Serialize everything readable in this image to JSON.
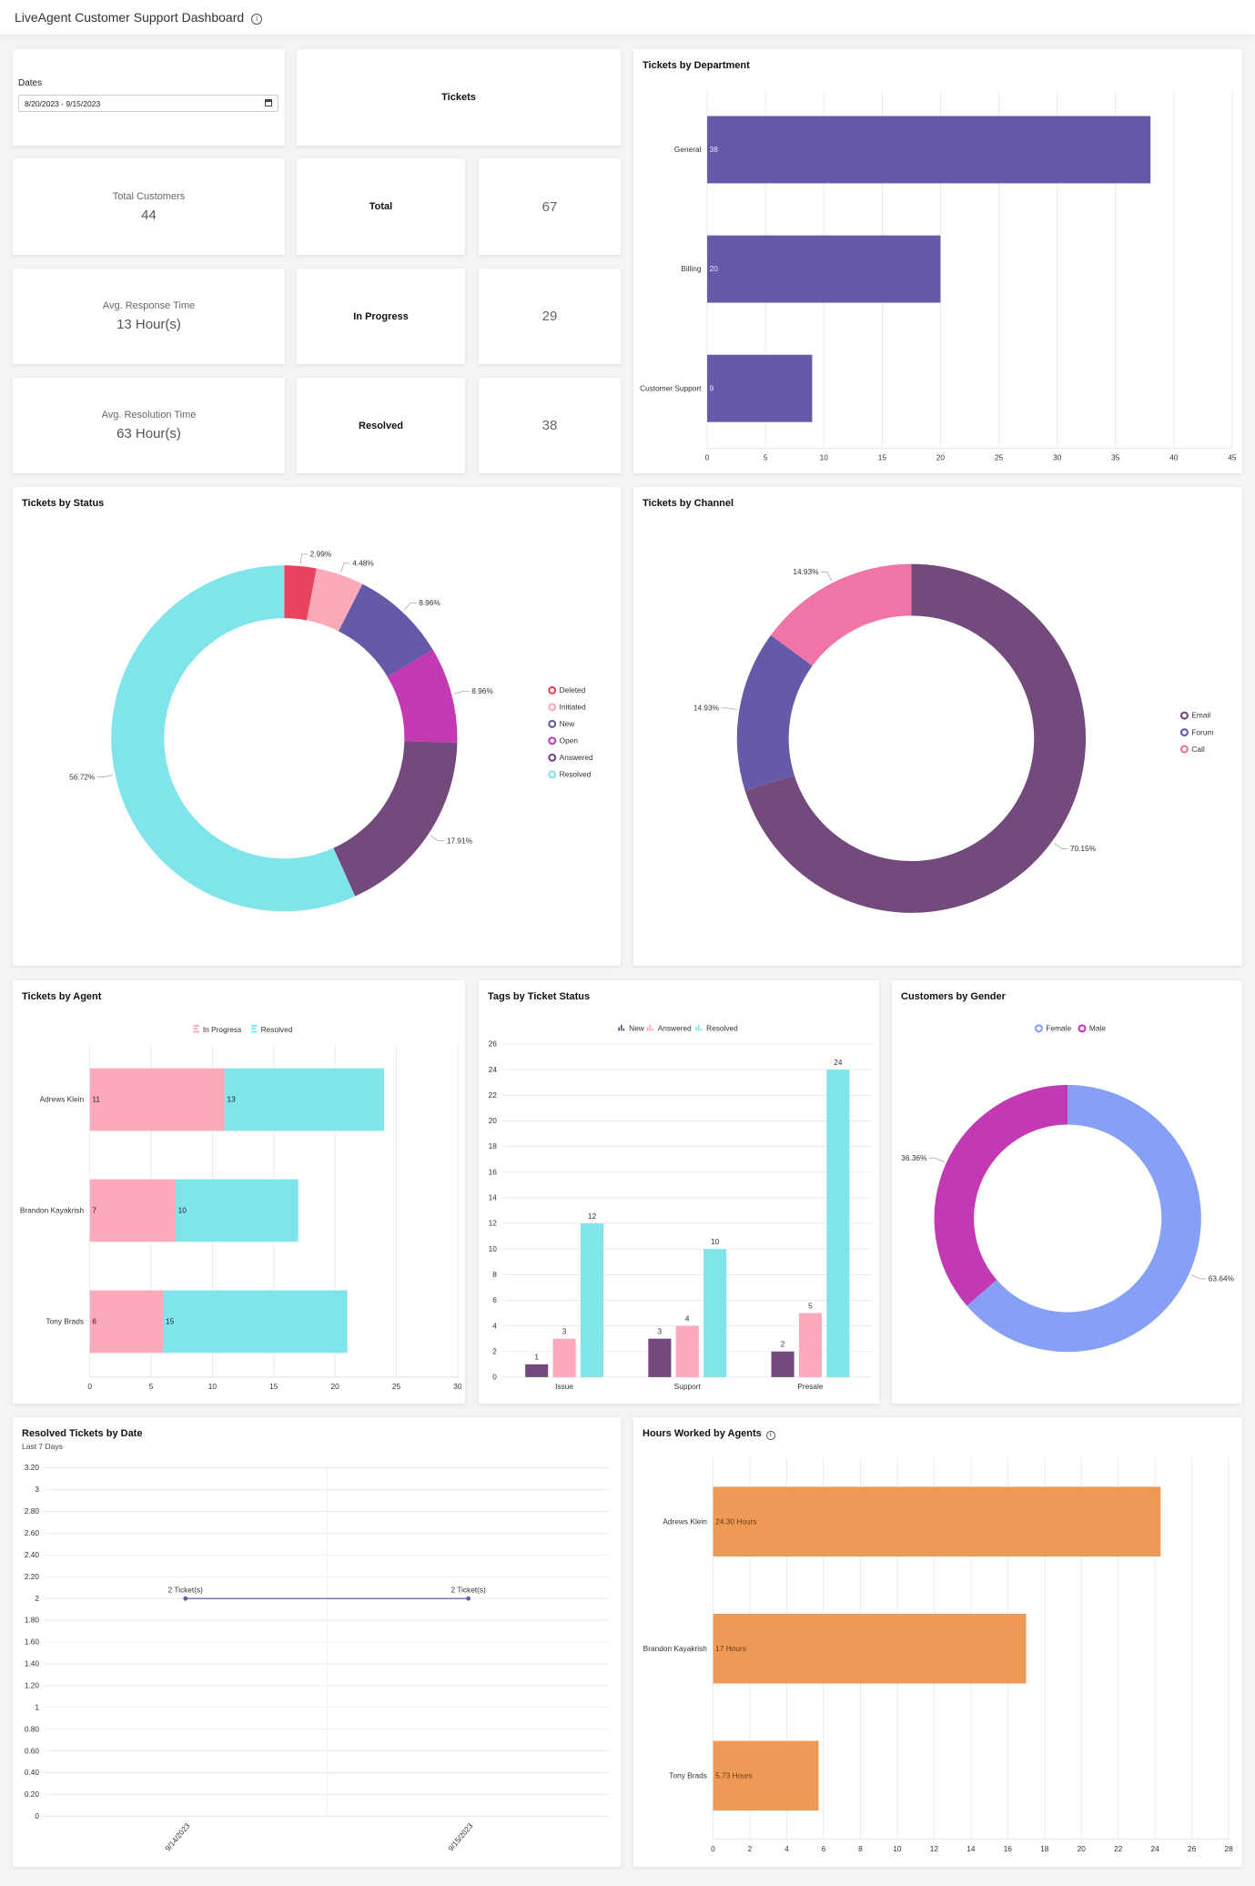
{
  "header": {
    "title": "LiveAgent Customer Support Dashboard",
    "info_icon": "info-icon"
  },
  "dates": {
    "label": "Dates",
    "value": "8/20/2023 - 9/15/2023",
    "icon": "calendar-icon"
  },
  "tickets_header": "Tickets",
  "stats": {
    "total_customers": {
      "label": "Total Customers",
      "value": "44"
    },
    "avg_response": {
      "label": "Avg. Response Time",
      "value": "13 Hour(s)"
    },
    "avg_resolution": {
      "label": "Avg. Resolution Time",
      "value": "63 Hour(s)"
    }
  },
  "tickets": {
    "total": {
      "label": "Total",
      "value": "67"
    },
    "in_progress": {
      "label": "In Progress",
      "value": "29"
    },
    "resolved": {
      "label": "Resolved",
      "value": "38"
    }
  },
  "chart_data": [
    {
      "id": "dept",
      "type": "bar",
      "orientation": "horizontal",
      "title": "Tickets by Department",
      "categories": [
        "General",
        "Billing",
        "Customer Support"
      ],
      "series": [
        {
          "values": [
            38,
            20,
            9
          ],
          "color": "#645aa8"
        }
      ],
      "xlim": [
        0,
        45
      ],
      "xticks": [
        0,
        5,
        10,
        15,
        20,
        25,
        30,
        35,
        40,
        45
      ],
      "grid": true
    },
    {
      "id": "status",
      "type": "pie",
      "donut": true,
      "title": "Tickets by Status",
      "legend": "right",
      "labels": [
        "Deleted",
        "Initiated",
        "New",
        "Open",
        "Answered",
        "Resolved"
      ],
      "values": [
        2.99,
        4.48,
        8.96,
        8.96,
        17.91,
        56.72
      ],
      "value_labels": [
        "2.99%",
        "4.48%",
        "8.96%",
        "8.96%",
        "17.91%",
        "56.72%"
      ],
      "colors": [
        "#e8445f",
        "#fca9ba",
        "#645aa8",
        "#c239b3",
        "#734a7c",
        "#7fe5eb"
      ]
    },
    {
      "id": "channel",
      "type": "pie",
      "donut": true,
      "title": "Tickets by Channel",
      "legend": "right",
      "labels": [
        "Email",
        "Forum",
        "Call"
      ],
      "values": [
        70.15,
        14.93,
        14.93
      ],
      "value_labels": [
        "70.15%",
        "14.93%",
        "14.93%"
      ],
      "colors": [
        "#734a7c",
        "#645aa8",
        "#f075a6"
      ]
    },
    {
      "id": "agent",
      "type": "bar",
      "orientation": "horizontal",
      "stacked": true,
      "title": "Tickets by Agent",
      "legend": "top",
      "categories": [
        "Adrews Klein",
        "Brandon Kayakrish",
        "Tony Brads"
      ],
      "series": [
        {
          "name": "In Progress",
          "values": [
            11,
            7,
            6
          ],
          "color": "#fcaabb"
        },
        {
          "name": "Resolved",
          "values": [
            13,
            10,
            15
          ],
          "color": "#7fe5eb"
        }
      ],
      "xlim": [
        0,
        30
      ],
      "xticks": [
        0,
        5,
        10,
        15,
        20,
        25,
        30
      ],
      "grid": true
    },
    {
      "id": "tags",
      "type": "bar",
      "orientation": "vertical",
      "title": "Tags by Ticket Status",
      "legend": "top",
      "categories": [
        "Issue",
        "Support",
        "Presale"
      ],
      "series": [
        {
          "name": "New",
          "values": [
            1,
            3,
            2
          ],
          "color": "#734a7c"
        },
        {
          "name": "Answered",
          "values": [
            3,
            4,
            5
          ],
          "color": "#fcaabb"
        },
        {
          "name": "Resolved",
          "values": [
            12,
            10,
            24
          ],
          "color": "#7fe5eb"
        }
      ],
      "ylim": [
        0,
        26
      ],
      "yticks": [
        0,
        2,
        4,
        6,
        8,
        10,
        12,
        14,
        16,
        18,
        20,
        22,
        24,
        26
      ],
      "grid": true
    },
    {
      "id": "gender",
      "type": "pie",
      "donut": true,
      "title": "Customers by Gender",
      "legend": "top",
      "labels": [
        "Female",
        "Male"
      ],
      "values": [
        63.64,
        36.36
      ],
      "value_labels": [
        "63.64%",
        "36.36%"
      ],
      "colors": [
        "#86a0f5",
        "#c239b3"
      ]
    },
    {
      "id": "resolved",
      "type": "line",
      "title": "Resolved Tickets by Date",
      "subtitle": "Last 7 Days",
      "x": [
        "9/14/2023",
        "9/15/2023"
      ],
      "y": [
        2,
        2
      ],
      "point_labels": [
        "2 Ticket(s)",
        "2 Ticket(s)"
      ],
      "ylim": [
        0,
        3.2
      ],
      "yticks": [
        0,
        0.2,
        0.4,
        0.6,
        0.8,
        1,
        1.2,
        1.4,
        1.6,
        1.8,
        2,
        2.2,
        2.4,
        2.6,
        2.8,
        3,
        3.2
      ],
      "ytick_labels": [
        "0",
        "0.20",
        "0.40",
        "0.60",
        "0.80",
        "1",
        "1.20",
        "1.40",
        "1.60",
        "1.80",
        "2",
        "2.20",
        "2.40",
        "2.60",
        "2.80",
        "3",
        "3.20"
      ],
      "color": "#645aa8",
      "grid": true
    },
    {
      "id": "hours",
      "type": "bar",
      "orientation": "horizontal",
      "title": "Hours Worked by Agents",
      "info_icon": "info-icon",
      "categories": [
        "Adrews Klein",
        "Brandon Kayakrish",
        "Tony Brads"
      ],
      "series": [
        {
          "values": [
            24.3,
            17,
            5.73
          ],
          "labels": [
            "24.30 Hours",
            "17 Hours",
            "5.73 Hours"
          ],
          "color": "#ee9a56"
        }
      ],
      "xlim": [
        0,
        28
      ],
      "xticks": [
        0,
        2,
        4,
        6,
        8,
        10,
        12,
        14,
        16,
        18,
        20,
        22,
        24,
        26,
        28
      ],
      "grid": true
    }
  ]
}
